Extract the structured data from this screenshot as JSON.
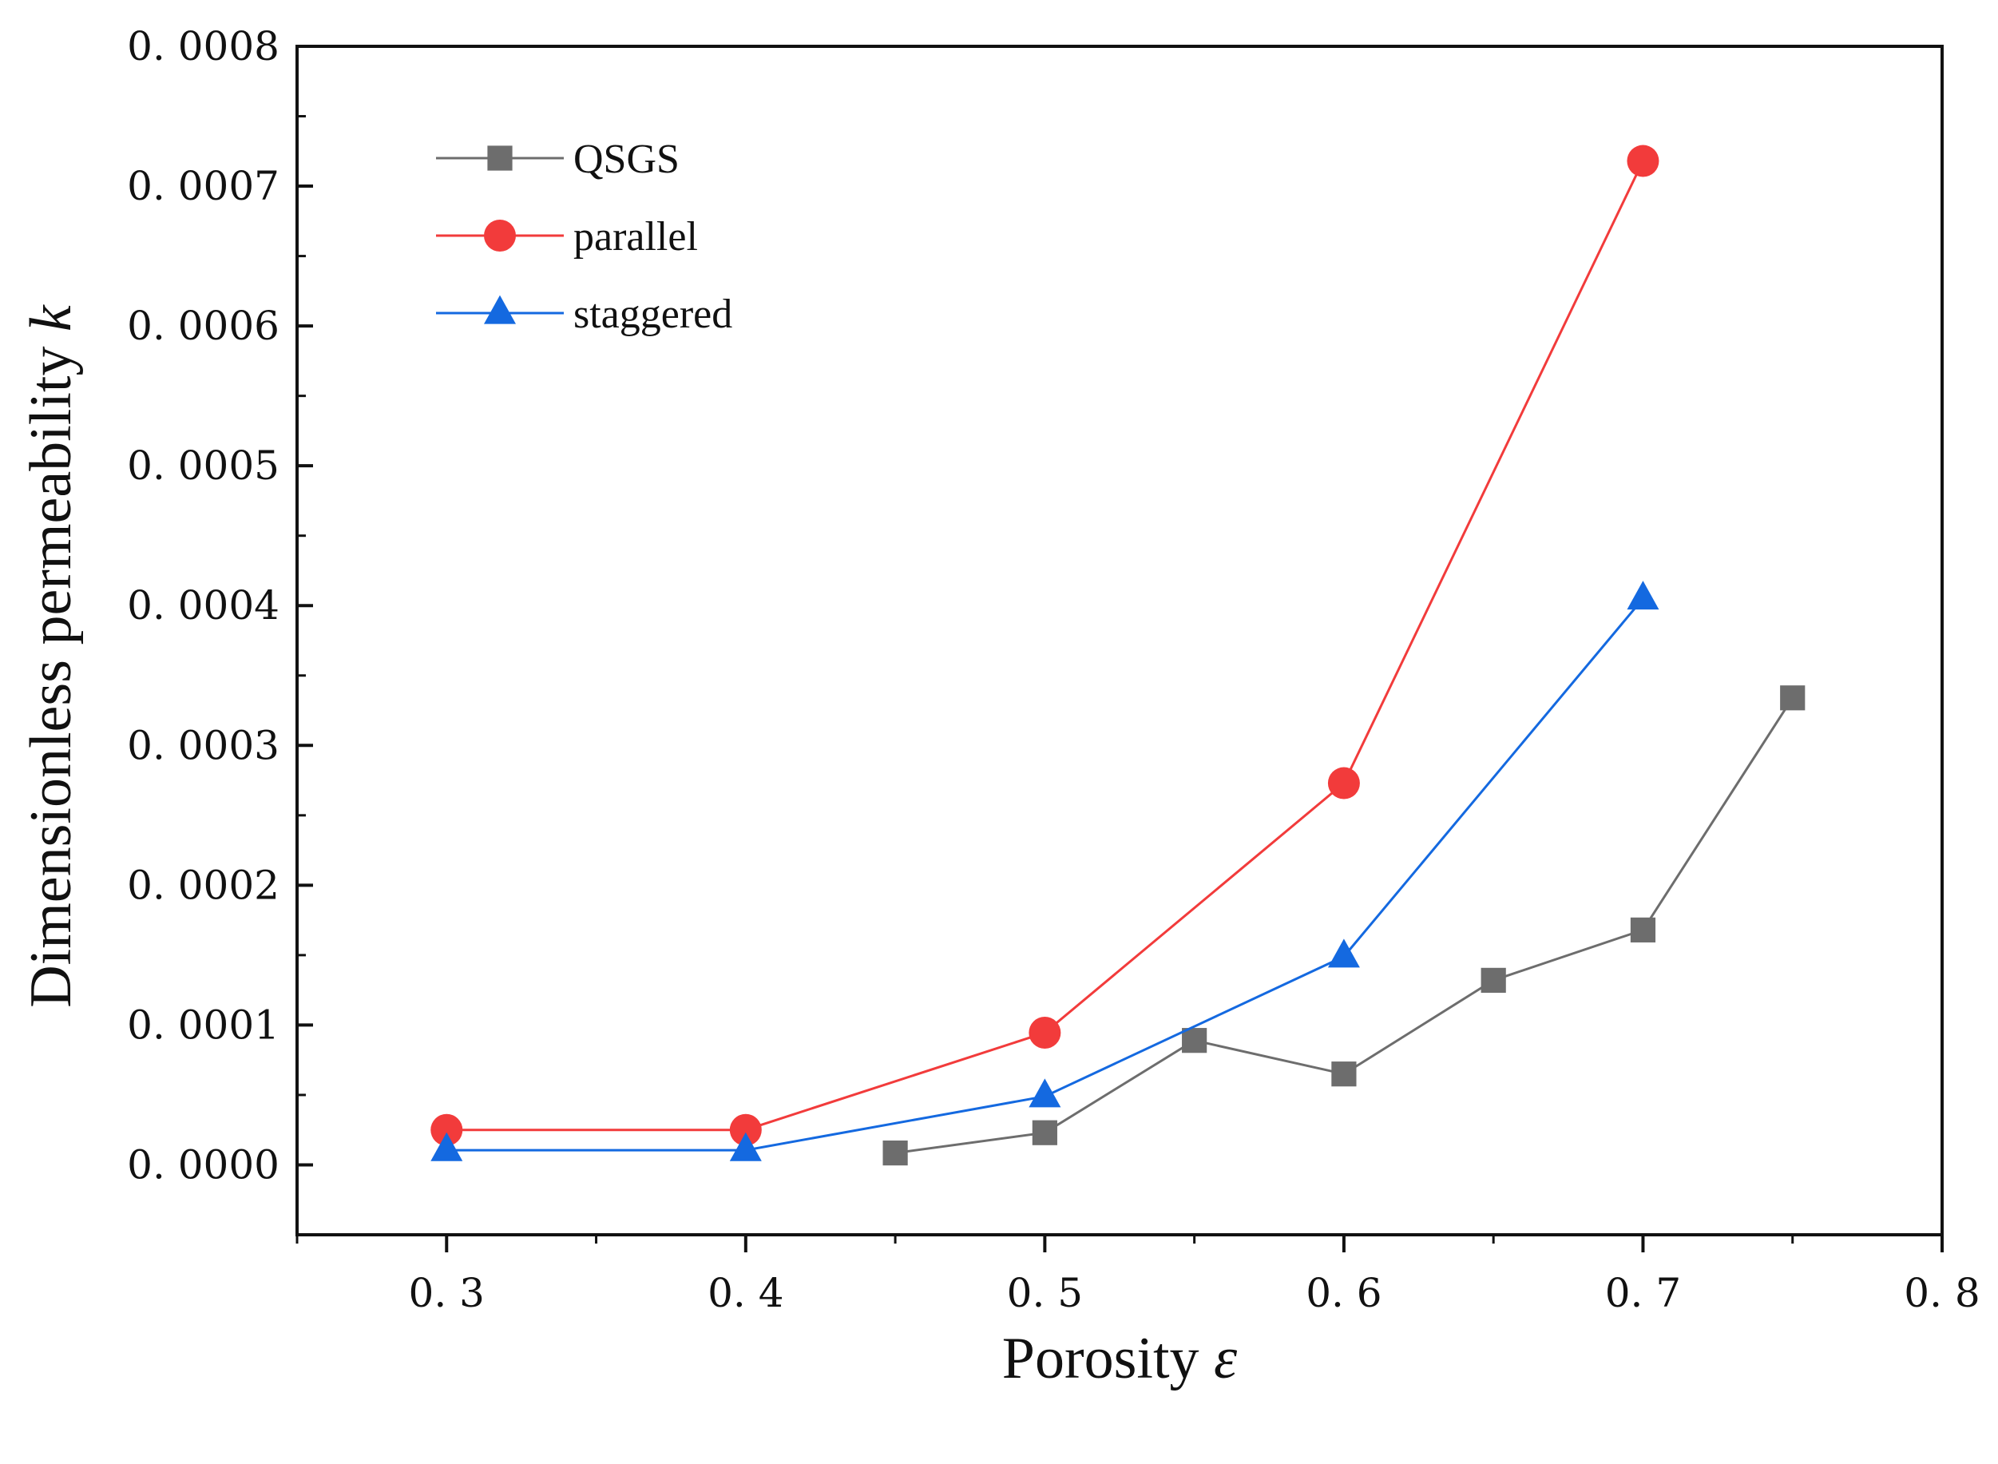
{
  "chart_data": {
    "type": "line",
    "xlabel": "Porosity",
    "xlabel_symbol": "ε",
    "ylabel": "Dimensionless permeability",
    "ylabel_symbol": "k",
    "xlim": [
      0.25,
      0.8
    ],
    "ylim": [
      -5e-05,
      0.0008
    ],
    "x_ticks": [
      0.3,
      0.4,
      0.5,
      0.6,
      0.7,
      0.8
    ],
    "x_tick_labels": [
      "0. 3",
      "0. 4",
      "0. 5",
      "0. 6",
      "0. 7",
      "0. 8"
    ],
    "y_ticks": [
      0,
      0.0001,
      0.0002,
      0.0003,
      0.0004,
      0.0005,
      0.0006,
      0.0007,
      0.0008
    ],
    "y_tick_labels": [
      "0. 0000",
      "0. 0001",
      "0. 0002",
      "0. 0003",
      "0. 0004",
      "0. 0005",
      "0. 0006",
      "0. 0007",
      "0. 0008"
    ],
    "grid": false,
    "legend_position": "top-left",
    "series": [
      {
        "name": "QSGS",
        "color": "#6d6d6d",
        "marker": "square",
        "x": [
          0.45,
          0.5,
          0.55,
          0.6,
          0.65,
          0.7,
          0.75
        ],
        "values": [
          8.5e-06,
          2.3e-05,
          8.9e-05,
          6.5e-05,
          0.000132,
          0.000168,
          0.000334
        ]
      },
      {
        "name": "parallel",
        "color": "#f23b3b",
        "marker": "circle",
        "x": [
          0.3,
          0.4,
          0.5,
          0.6,
          0.7
        ],
        "values": [
          2.5e-05,
          2.5e-05,
          9.45e-05,
          0.000273,
          0.000718
        ]
      },
      {
        "name": "staggered",
        "color": "#1469e0",
        "marker": "triangle",
        "x": [
          0.3,
          0.4,
          0.5,
          0.6,
          0.7
        ],
        "values": [
          1.05e-05,
          1.05e-05,
          4.9e-05,
          0.000149,
          0.000405
        ]
      }
    ]
  }
}
